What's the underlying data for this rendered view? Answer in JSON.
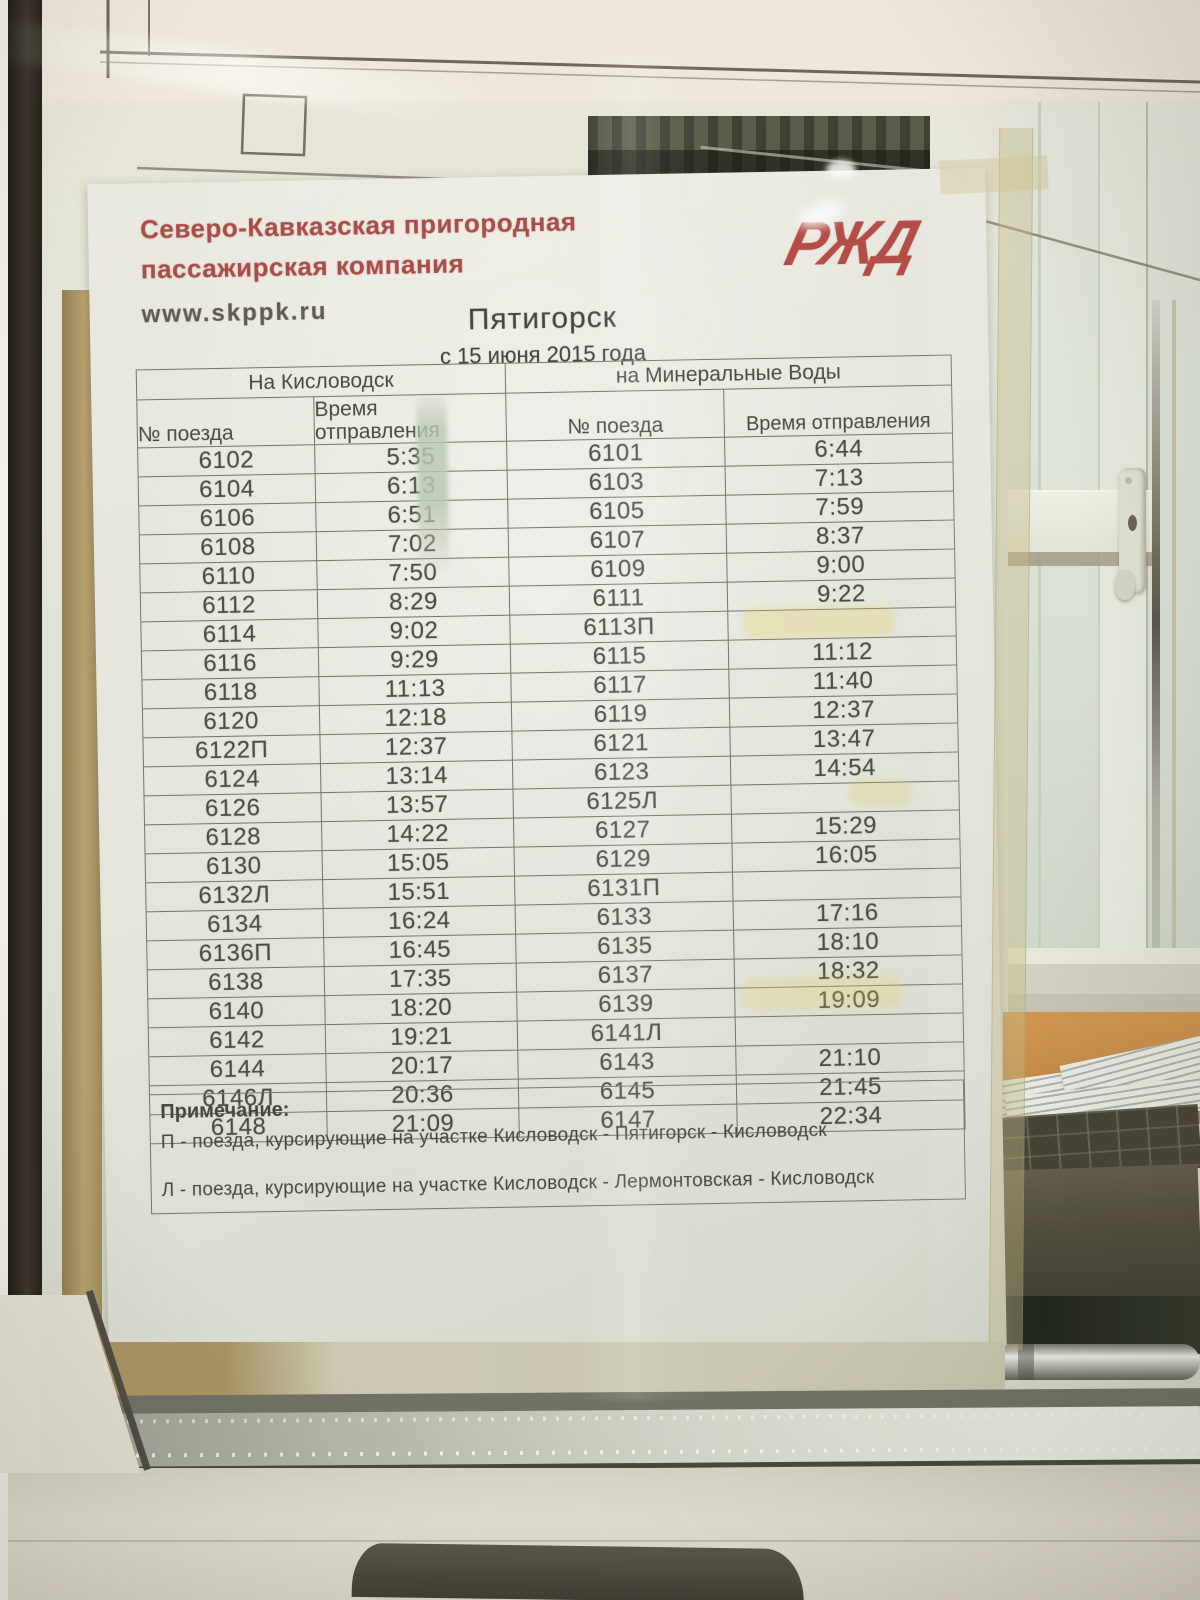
{
  "header": {
    "company_line1": "Северо-Кавказская пригородная",
    "company_line2": "пассажирская компания",
    "website": "www.skppk.ru",
    "logo_text": "РЖД"
  },
  "titleblock": {
    "station": "Пятигорск",
    "effective_date": "с 15 июня  2015 года"
  },
  "schedule": {
    "sections": {
      "kislovodsk": "На Кисловодск",
      "minvody": "на Минеральные Воды"
    },
    "columns": {
      "train": "№ поезда",
      "time_line1": "Время",
      "time_line2": "отправления",
      "time": "Время отправления"
    },
    "rows": [
      [
        "6102",
        "5:35",
        "6101",
        "6:44"
      ],
      [
        "6104",
        "6:13",
        "6103",
        "7:13"
      ],
      [
        "6106",
        "6:51",
        "6105",
        "7:59"
      ],
      [
        "6108",
        "7:02",
        "6107",
        "8:37"
      ],
      [
        "6110",
        "7:50",
        "6109",
        "9:00"
      ],
      [
        "6112",
        "8:29",
        "6111",
        "9:22"
      ],
      [
        "6114",
        "9:02",
        "6113П",
        ""
      ],
      [
        "6116",
        "9:29",
        "6115",
        "11:12"
      ],
      [
        "6118",
        "11:13",
        "6117",
        "11:40"
      ],
      [
        "6120",
        "12:18",
        "6119",
        "12:37"
      ],
      [
        "6122П",
        "12:37",
        "6121",
        "13:47"
      ],
      [
        "6124",
        "13:14",
        "6123",
        "14:54"
      ],
      [
        "6126",
        "13:57",
        "6125Л",
        ""
      ],
      [
        "6128",
        "14:22",
        "6127",
        "15:29"
      ],
      [
        "6130",
        "15:05",
        "6129",
        "16:05"
      ],
      [
        "6132Л",
        "15:51",
        "6131П",
        ""
      ],
      [
        "6134",
        "16:24",
        "6133",
        "17:16"
      ],
      [
        "6136П",
        "16:45",
        "6135",
        "18:10"
      ],
      [
        "6138",
        "17:35",
        "6137",
        "18:32"
      ],
      [
        "6140",
        "18:20",
        "6139",
        "19:09"
      ],
      [
        "6142",
        "19:21",
        "6141Л",
        ""
      ],
      [
        "6144",
        "20:17",
        "6143",
        "21:10"
      ],
      [
        "6146Л",
        "20:36",
        "6145",
        "21:45"
      ],
      [
        "6148",
        "21:09",
        "6147",
        "22:34"
      ]
    ]
  },
  "notes": {
    "heading": "Примечание:",
    "items": [
      "П - поезда, курсирующие на участке Кисловодск - Пятигорск - Кисловодск",
      "Л - поезда, курсирующие на участке Кисловодск - Лермонтовская - Кисловодск"
    ]
  },
  "colors": {
    "brand_red": "#a7423e",
    "logo_red": "#b2423c",
    "table_text": "#42403a",
    "paper": "#e8e7df",
    "tape": "#c6ba84",
    "desk_orange": "#c8873e"
  }
}
